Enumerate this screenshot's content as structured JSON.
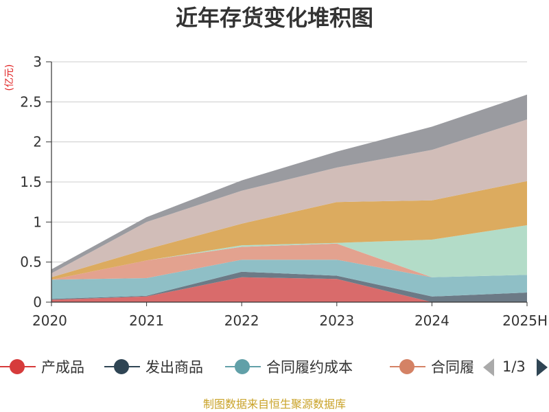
{
  "title": "近年存货变化堆积图",
  "unit_label": "(亿元)",
  "source_text": "制图数据来自恒生聚源数据库",
  "legend": {
    "items": [
      {
        "label": "产成品",
        "color": "#d63b3b"
      },
      {
        "label": "发出商品",
        "color": "#2f4554"
      },
      {
        "label": "合同履约成本",
        "color": "#61a0a8"
      },
      {
        "label": "合同履",
        "color": "#d48265"
      }
    ],
    "page_text": "1/3"
  },
  "chart_data": {
    "type": "area",
    "stacked": true,
    "categories": [
      "2020",
      "2021",
      "2022",
      "2023",
      "2024",
      "2025H"
    ],
    "y_ticks": [
      "0",
      "0.5",
      "1",
      "1.5",
      "2",
      "2.5",
      "3"
    ],
    "ylim": [
      0,
      3
    ],
    "grid": true,
    "series": [
      {
        "name": "产成品",
        "color": "#d96b6b",
        "values": [
          0.03,
          0.07,
          0.31,
          0.29,
          0.0,
          0.0
        ]
      },
      {
        "name": "发出商品",
        "color": "#6c7a86",
        "values": [
          0.01,
          0.01,
          0.07,
          0.04,
          0.07,
          0.12
        ]
      },
      {
        "name": "合同履约成本",
        "color": "#8fbfc6",
        "values": [
          0.24,
          0.22,
          0.15,
          0.2,
          0.24,
          0.22
        ]
      },
      {
        "name": "合同履",
        "color": "#e3a28f",
        "values": [
          0.0,
          0.22,
          0.16,
          0.2,
          0.0,
          0.0
        ]
      },
      {
        "color": "#b3dcc8",
        "values": [
          0.0,
          0.0,
          0.02,
          0.01,
          0.47,
          0.62
        ]
      },
      {
        "color": "#dcab5f",
        "values": [
          0.03,
          0.14,
          0.27,
          0.51,
          0.49,
          0.55
        ]
      },
      {
        "color": "#d1bdb8",
        "values": [
          0.05,
          0.34,
          0.41,
          0.43,
          0.63,
          0.77
        ]
      },
      {
        "color": "#9a9ba0",
        "values": [
          0.05,
          0.06,
          0.13,
          0.2,
          0.29,
          0.31
        ]
      }
    ]
  }
}
